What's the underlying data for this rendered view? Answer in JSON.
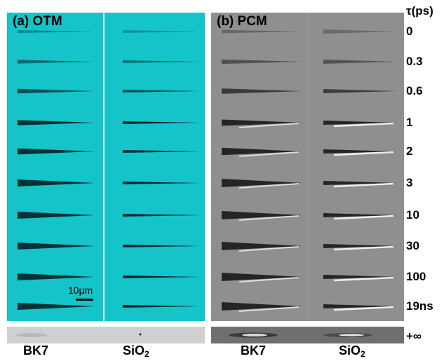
{
  "panels": {
    "otm": {
      "label": "(a) OTM",
      "background": "#14c4c9"
    },
    "pcm": {
      "label": "(b) PCM",
      "background": "#8f8f8f"
    }
  },
  "tau": {
    "header": "τ(ps)",
    "rows": [
      "0",
      "0.3",
      "0.6",
      "1",
      "2",
      "3",
      "10",
      "30",
      "100",
      "19ns"
    ],
    "final": "+∞"
  },
  "materials": {
    "left": "BK7",
    "right_base": "SiO",
    "right_sub": "2"
  },
  "scale_bar": {
    "label": "10μm"
  },
  "colors": {
    "dark_streak": "#05181a",
    "bright_streak": "#ffffff"
  }
}
